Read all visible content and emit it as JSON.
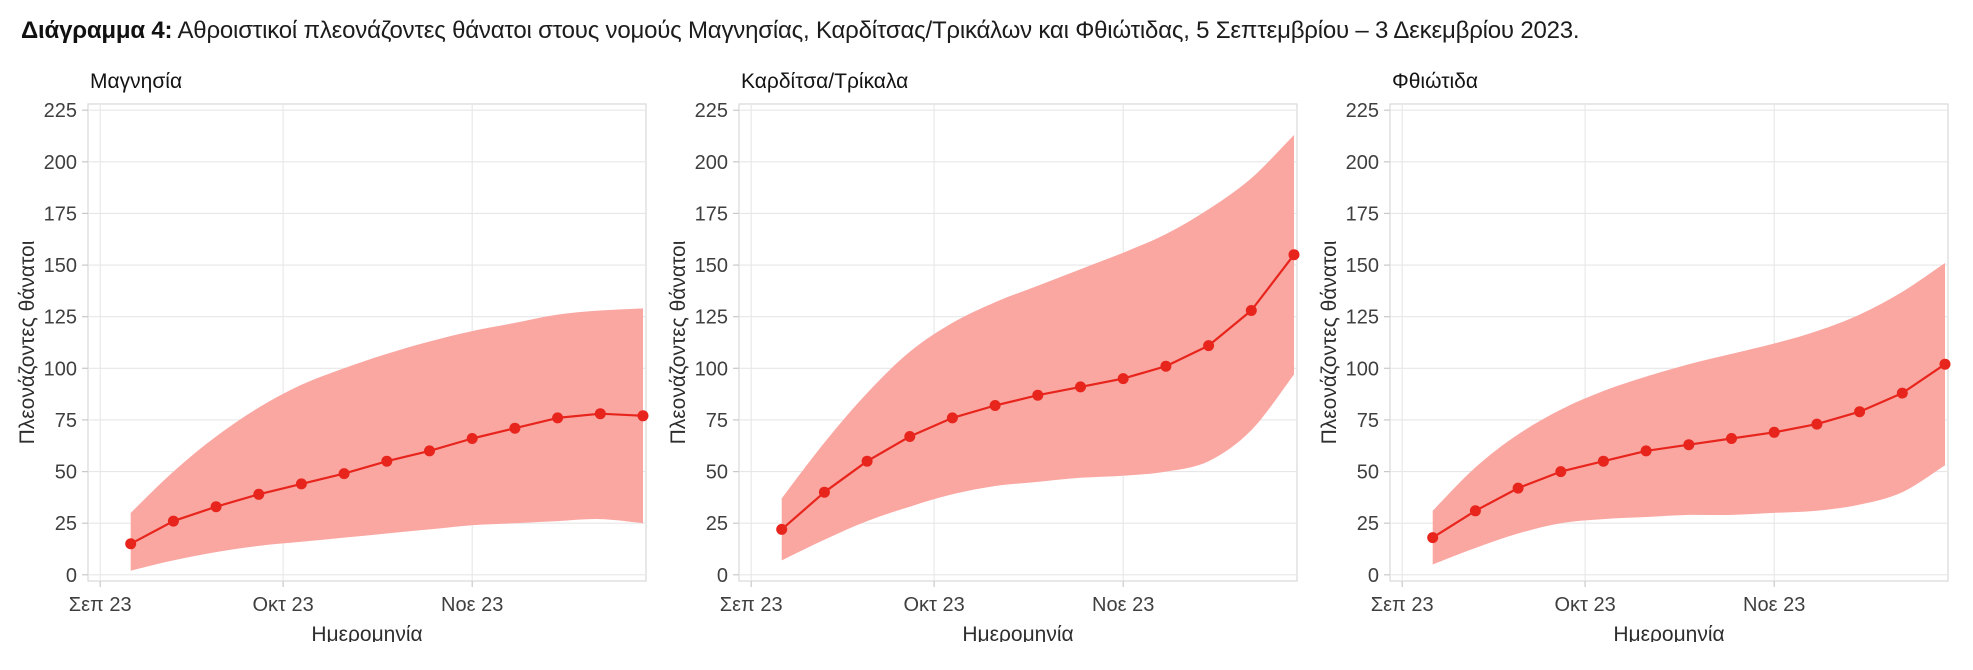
{
  "header": {
    "prefix": "Διάγραμμα 4:",
    "text": " Αθροιστικοί πλεονάζοντες θάνατοι στους νομούς Μαγνησίας, Καρδίτσας/Τρικάλων και Φθιώτιδας, 5 Σεπτεμβρίου – 3 Δεκεμβρίου 2023."
  },
  "colors": {
    "line": "#e8251c",
    "point": "#e8251c",
    "band": "#faa7a2",
    "grid": "#e7e7e7",
    "panel_border": "#d9d9d9",
    "tick_mark": "#c9c9c9",
    "tick_label": "#3f3f3f",
    "axis_title": "#2e2e2e",
    "chart_title": "#141414",
    "background": "#ffffff"
  },
  "axes": {
    "x_label": "Ημερομηνία",
    "y_label": "Πλεονάζοντες θάνατοι",
    "x_ticks": [
      {
        "label": "Σεπ 23",
        "day": 0
      },
      {
        "label": "Οκτ 23",
        "day": 30
      },
      {
        "label": "Νοε 23",
        "day": 61
      }
    ],
    "y_ticks": [
      0,
      25,
      50,
      75,
      100,
      125,
      150,
      175,
      200,
      225
    ],
    "ylim": [
      0,
      225
    ]
  },
  "chart_data": [
    {
      "type": "line",
      "title": "Μαγνησία",
      "x_day_offsets": [
        5,
        12,
        19,
        26,
        33,
        40,
        47,
        54,
        61,
        68,
        75,
        82,
        89
      ],
      "series": [
        {
          "name": "estimate",
          "values": [
            15,
            26,
            33,
            39,
            44,
            49,
            55,
            60,
            66,
            71,
            76,
            78,
            77
          ]
        },
        {
          "name": "lower",
          "values": [
            2,
            7,
            11,
            14,
            16,
            18,
            20,
            22,
            24,
            25,
            26,
            27,
            25
          ]
        },
        {
          "name": "upper",
          "values": [
            30,
            50,
            67,
            81,
            92,
            100,
            107,
            113,
            118,
            122,
            126,
            128,
            129
          ]
        }
      ]
    },
    {
      "type": "line",
      "title": "Καρδίτσα/Τρίκαλα",
      "x_day_offsets": [
        5,
        12,
        19,
        26,
        33,
        40,
        47,
        54,
        61,
        68,
        75,
        82,
        89
      ],
      "series": [
        {
          "name": "estimate",
          "values": [
            22,
            40,
            55,
            67,
            76,
            82,
            87,
            91,
            95,
            101,
            111,
            128,
            155
          ]
        },
        {
          "name": "lower",
          "values": [
            7,
            17,
            26,
            33,
            39,
            43,
            45,
            47,
            48,
            50,
            55,
            70,
            97
          ]
        },
        {
          "name": "upper",
          "values": [
            37,
            64,
            88,
            108,
            122,
            132,
            140,
            148,
            156,
            165,
            177,
            192,
            213
          ]
        }
      ]
    },
    {
      "type": "line",
      "title": "Φθιώτιδα",
      "x_day_offsets": [
        5,
        12,
        19,
        26,
        33,
        40,
        47,
        54,
        61,
        68,
        75,
        82,
        89
      ],
      "series": [
        {
          "name": "estimate",
          "values": [
            18,
            31,
            42,
            50,
            55,
            60,
            63,
            66,
            69,
            73,
            79,
            88,
            102
          ]
        },
        {
          "name": "lower",
          "values": [
            5,
            13,
            20,
            25,
            27,
            28,
            29,
            29,
            30,
            31,
            34,
            40,
            53
          ]
        },
        {
          "name": "upper",
          "values": [
            31,
            52,
            68,
            80,
            89,
            96,
            102,
            107,
            112,
            118,
            126,
            137,
            151
          ]
        }
      ]
    }
  ]
}
